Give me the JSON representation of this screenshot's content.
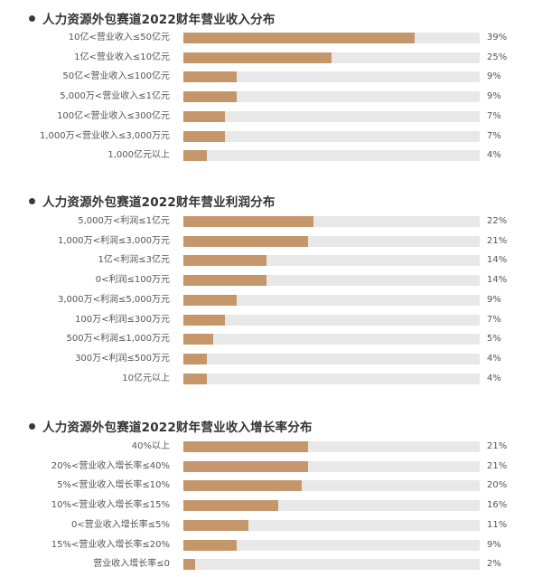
{
  "chart_data": [
    {
      "type": "bar",
      "orientation": "horizontal",
      "title": "人力资源外包赛道2022财年营业收入分布",
      "categories": [
        "10亿<营业收入≤50亿元",
        "1亿<营业收入≤10亿元",
        "50亿<营业收入≤100亿元",
        "5,000万<营业收入≤1亿元",
        "100亿<营业收入≤300亿元",
        "1,000万<营业收入≤3,000万元",
        "1,000亿元以上"
      ],
      "values": [
        39,
        25,
        9,
        9,
        7,
        7,
        4
      ],
      "value_labels": [
        "39%",
        "25%",
        "9%",
        "9%",
        "7%",
        "7%",
        "4%"
      ],
      "xlim": [
        0,
        50
      ],
      "grid": false,
      "legend": "none"
    },
    {
      "type": "bar",
      "orientation": "horizontal",
      "title": "人力资源外包赛道2022财年营业利润分布",
      "categories": [
        "5,000万<利润≤1亿元",
        "1,000万<利润≤3,000万元",
        "1亿<利润≤3亿元",
        "0<利润≤100万元",
        "3,000万<利润≤5,000万元",
        "100万<利润≤300万元",
        "500万<利润≤1,000万元",
        "300万<利润≤500万元",
        "10亿元以上"
      ],
      "values": [
        22,
        21,
        14,
        14,
        9,
        7,
        5,
        4,
        4
      ],
      "value_labels": [
        "22%",
        "21%",
        "14%",
        "14%",
        "9%",
        "7%",
        "5%",
        "4%",
        "4%"
      ],
      "xlim": [
        0,
        50
      ],
      "grid": false,
      "legend": "none"
    },
    {
      "type": "bar",
      "orientation": "horizontal",
      "title": "人力资源外包赛道2022财年营业收入增长率分布",
      "categories": [
        "40%以上",
        "20%<营业收入增长率≤40%",
        "5%<营业收入增长率≤10%",
        "10%<营业收入增长率≤15%",
        "0<营业收入增长率≤5%",
        "15%<营业收入增长率≤20%",
        "营业收入增长率≤0"
      ],
      "values": [
        21,
        21,
        20,
        16,
        11,
        9,
        2
      ],
      "value_labels": [
        "21%",
        "21%",
        "20%",
        "16%",
        "11%",
        "9%",
        "2%"
      ],
      "xlim": [
        0,
        50
      ],
      "grid": false,
      "legend": "none"
    }
  ],
  "colors": {
    "bar": "#c6966b",
    "track": "#e8e8e8",
    "title_dot": "#3a3a3a"
  }
}
